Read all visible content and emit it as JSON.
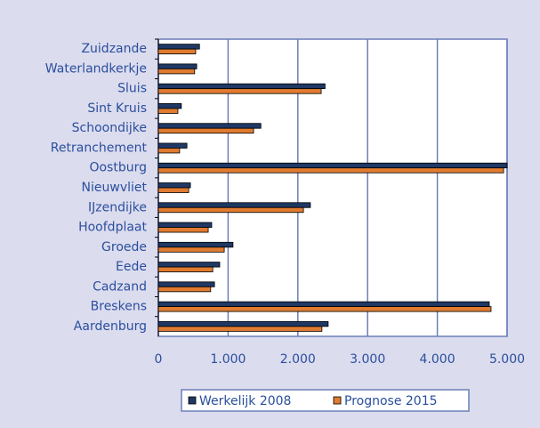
{
  "chart_data": {
    "type": "bar",
    "orientation": "horizontal",
    "categories": [
      "Zuidzande",
      "Waterlandkerkje",
      "Sluis",
      "Sint Kruis",
      "Schoondijke",
      "Retranchement",
      "Oostburg",
      "Nieuwvliet",
      "IJzendijke",
      "Hoofdplaat",
      "Groede",
      "Eede",
      "Cadzand",
      "Breskens",
      "Aardenburg"
    ],
    "series": [
      {
        "name": "Werkelijk 2008",
        "color": "#1f3864",
        "values": [
          590,
          550,
          2390,
          330,
          1470,
          410,
          5000,
          460,
          2180,
          765,
          1070,
          880,
          805,
          4745,
          2435
        ]
      },
      {
        "name": "Prognose 2015",
        "color": "#e07b30",
        "values": [
          535,
          520,
          2335,
          280,
          1365,
          305,
          4950,
          435,
          2080,
          715,
          945,
          780,
          750,
          4770,
          2345
        ]
      }
    ],
    "xlim": [
      0,
      5000
    ],
    "xticks": [
      0,
      {
        "value": 1000,
        "label": "1.000"
      },
      {
        "value": 2000,
        "label": "2.000"
      },
      {
        "value": 3000,
        "label": "3.000"
      },
      {
        "value": 4000,
        "label": "4.000"
      },
      {
        "value": 5000,
        "label": "5.000"
      }
    ],
    "grid": true,
    "legend": "bottom"
  }
}
